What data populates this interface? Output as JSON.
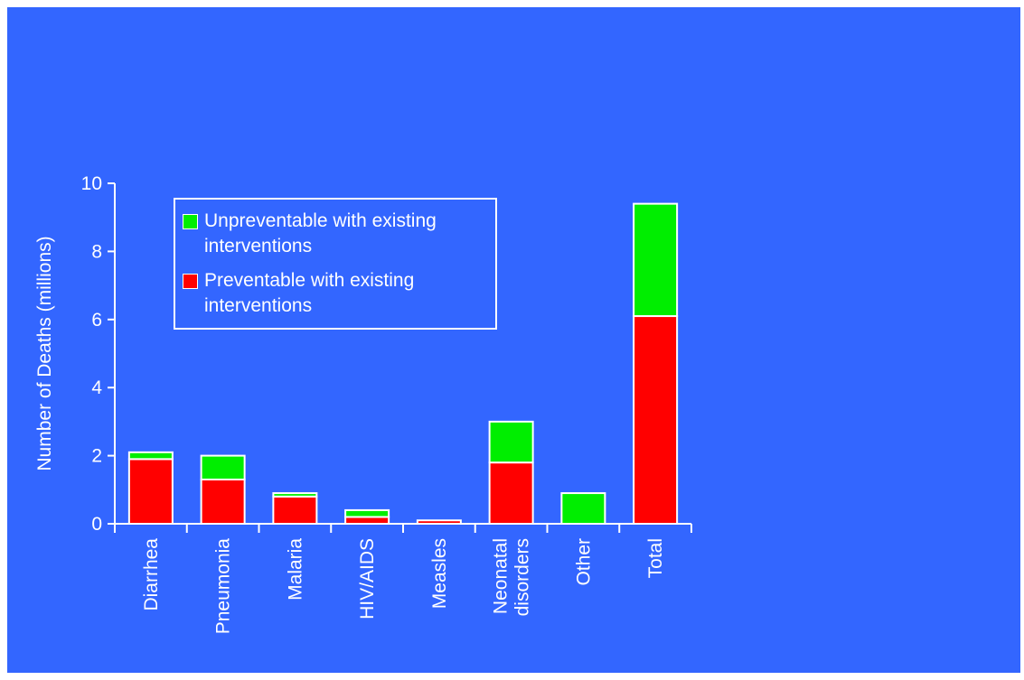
{
  "colors": {
    "background": "#3366ff",
    "axis": "#ffffff",
    "preventable": "#ff0000",
    "unpreventable": "#00ee00"
  },
  "chart_data": {
    "type": "bar",
    "stacked": true,
    "title": "",
    "xlabel": "",
    "ylabel": "Number of Deaths (millions)",
    "ylim": [
      0,
      10
    ],
    "yticks": [
      0,
      2,
      4,
      6,
      8,
      10
    ],
    "categories": [
      "Diarrhea",
      "Pneumonia",
      "Malaria",
      "HIV/AIDS",
      "Measles",
      "Neonatal disorders",
      "Other",
      "Total"
    ],
    "series": [
      {
        "name": "Preventable with existing interventions",
        "color": "#ff0000",
        "values": [
          1.9,
          1.3,
          0.8,
          0.2,
          0.1,
          1.8,
          0.0,
          6.1
        ]
      },
      {
        "name": "Unpreventable with existing interventions",
        "color": "#00ee00",
        "values": [
          0.2,
          0.7,
          0.1,
          0.2,
          0.0,
          1.2,
          0.9,
          3.3
        ]
      }
    ],
    "legend": {
      "position": "top-left",
      "entries": [
        {
          "label": "Unpreventable with existing\ninterventions",
          "color": "#00ee00"
        },
        {
          "label": "Preventable with existing\ninterventions",
          "color": "#ff0000"
        }
      ]
    },
    "grid": false
  }
}
